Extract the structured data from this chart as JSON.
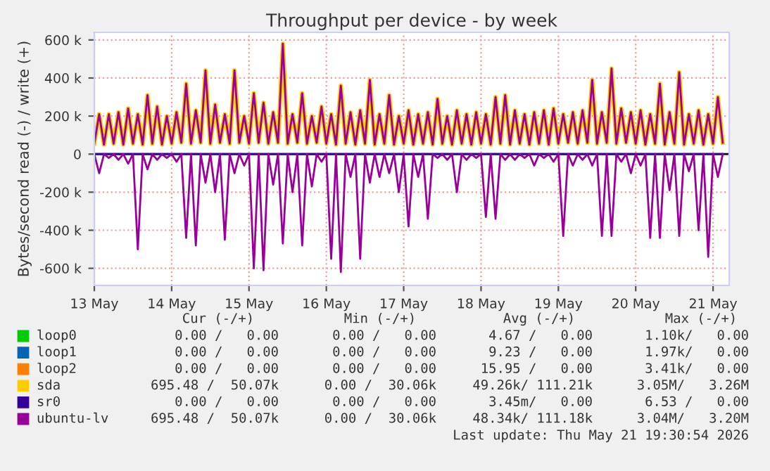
{
  "chart_data": {
    "type": "line",
    "title": "Throughput per device - by week",
    "ylabel": "Bytes/second read (-) / write (+)",
    "x": [
      "2026-05-13T00:00",
      "2026-05-13T01:30",
      "2026-05-13T03:00",
      "2026-05-13T04:30",
      "2026-05-13T06:00",
      "2026-05-13T07:30",
      "2026-05-13T09:00",
      "2026-05-13T10:30",
      "2026-05-13T12:00",
      "2026-05-13T13:30",
      "2026-05-13T15:00",
      "2026-05-13T16:30",
      "2026-05-13T18:00",
      "2026-05-13T19:30",
      "2026-05-13T21:00",
      "2026-05-13T22:30",
      "2026-05-14T00:00",
      "2026-05-14T01:30",
      "2026-05-14T03:00",
      "2026-05-14T04:30",
      "2026-05-14T06:00",
      "2026-05-14T07:30",
      "2026-05-14T09:00",
      "2026-05-14T10:30",
      "2026-05-14T12:00",
      "2026-05-14T13:30",
      "2026-05-14T15:00",
      "2026-05-14T16:30",
      "2026-05-14T18:00",
      "2026-05-14T19:30",
      "2026-05-14T21:00",
      "2026-05-14T22:30",
      "2026-05-15T00:00",
      "2026-05-15T01:30",
      "2026-05-15T03:00",
      "2026-05-15T04:30",
      "2026-05-15T06:00",
      "2026-05-15T07:30",
      "2026-05-15T09:00",
      "2026-05-15T10:30",
      "2026-05-15T12:00",
      "2026-05-15T13:30",
      "2026-05-15T15:00",
      "2026-05-15T16:30",
      "2026-05-15T18:00",
      "2026-05-15T19:30",
      "2026-05-15T21:00",
      "2026-05-15T22:30",
      "2026-05-16T00:00",
      "2026-05-16T01:30",
      "2026-05-16T03:00",
      "2026-05-16T04:30",
      "2026-05-16T06:00",
      "2026-05-16T07:30",
      "2026-05-16T09:00",
      "2026-05-16T10:30",
      "2026-05-16T12:00",
      "2026-05-16T13:30",
      "2026-05-16T15:00",
      "2026-05-16T16:30",
      "2026-05-16T18:00",
      "2026-05-16T19:30",
      "2026-05-16T21:00",
      "2026-05-16T22:30",
      "2026-05-17T00:00",
      "2026-05-17T01:30",
      "2026-05-17T03:00",
      "2026-05-17T04:30",
      "2026-05-17T06:00",
      "2026-05-17T07:30",
      "2026-05-17T09:00",
      "2026-05-17T10:30",
      "2026-05-17T12:00",
      "2026-05-17T13:30",
      "2026-05-17T15:00",
      "2026-05-17T16:30",
      "2026-05-17T18:00",
      "2026-05-17T19:30",
      "2026-05-17T21:00",
      "2026-05-17T22:30",
      "2026-05-18T00:00",
      "2026-05-18T01:30",
      "2026-05-18T03:00",
      "2026-05-18T04:30",
      "2026-05-18T06:00",
      "2026-05-18T07:30",
      "2026-05-18T09:00",
      "2026-05-18T10:30",
      "2026-05-18T12:00",
      "2026-05-18T13:30",
      "2026-05-18T15:00",
      "2026-05-18T16:30",
      "2026-05-18T18:00",
      "2026-05-18T19:30",
      "2026-05-18T21:00",
      "2026-05-18T22:30",
      "2026-05-19T00:00",
      "2026-05-19T01:30",
      "2026-05-19T03:00",
      "2026-05-19T04:30",
      "2026-05-19T06:00",
      "2026-05-19T07:30",
      "2026-05-19T09:00",
      "2026-05-19T10:30",
      "2026-05-19T12:00",
      "2026-05-19T13:30",
      "2026-05-19T15:00",
      "2026-05-19T16:30",
      "2026-05-19T18:00",
      "2026-05-19T19:30",
      "2026-05-19T21:00",
      "2026-05-19T22:30",
      "2026-05-20T00:00",
      "2026-05-20T01:30",
      "2026-05-20T03:00",
      "2026-05-20T04:30",
      "2026-05-20T06:00",
      "2026-05-20T07:30",
      "2026-05-20T09:00",
      "2026-05-20T10:30",
      "2026-05-20T12:00",
      "2026-05-20T13:30",
      "2026-05-20T15:00",
      "2026-05-20T16:30",
      "2026-05-20T18:00",
      "2026-05-20T19:30",
      "2026-05-20T21:00",
      "2026-05-20T22:30",
      "2026-05-21T00:00",
      "2026-05-21T01:30",
      "2026-05-21T03:00"
    ],
    "series": [
      {
        "name": "loop0",
        "color": "#00cc00",
        "values": [
          null,
          null,
          null,
          null,
          null,
          null,
          null,
          null,
          null,
          null,
          null,
          null,
          null,
          null,
          null,
          null,
          null,
          null,
          null,
          null,
          null,
          null,
          null,
          null,
          null,
          null,
          null,
          null,
          null,
          null,
          null,
          null,
          null,
          null,
          null,
          null,
          null,
          null,
          null,
          null,
          null,
          null,
          null,
          null,
          null,
          null,
          null,
          null,
          null,
          null,
          null,
          null,
          null,
          null,
          null,
          null,
          null,
          null,
          null,
          null,
          null,
          null,
          null,
          null,
          null,
          null,
          null,
          null,
          null,
          null,
          null,
          null,
          null,
          null,
          null,
          null,
          null,
          null,
          null,
          null,
          null,
          null,
          null,
          null,
          null,
          null,
          null,
          null,
          null,
          null,
          null,
          null,
          null,
          null,
          null,
          null,
          null,
          null,
          null,
          null,
          null,
          null,
          null,
          null,
          null,
          null,
          null,
          null,
          null,
          null,
          null,
          null,
          null,
          null,
          null,
          null,
          null,
          null,
          null,
          null,
          null,
          null,
          null,
          null,
          null,
          null,
          null,
          null,
          null,
          null,
          null
        ]
      },
      {
        "name": "loop1",
        "color": "#0066b3",
        "values": [
          null,
          null,
          null,
          null,
          null,
          null,
          null,
          null,
          null,
          null,
          null,
          null,
          null,
          null,
          null,
          null,
          null,
          null,
          null,
          null,
          null,
          null,
          null,
          null,
          null,
          null,
          null,
          null,
          null,
          null,
          null,
          null,
          null,
          null,
          null,
          null,
          null,
          null,
          null,
          null,
          null,
          null,
          null,
          null,
          null,
          null,
          null,
          null,
          null,
          null,
          null,
          null,
          null,
          null,
          null,
          null,
          null,
          null,
          null,
          null,
          null,
          null,
          null,
          null,
          null,
          null,
          null,
          null,
          null,
          null,
          null,
          null,
          null,
          null,
          null,
          null,
          null,
          null,
          null,
          null,
          null,
          null,
          null,
          null,
          null,
          null,
          null,
          null,
          null,
          null,
          null,
          null,
          null,
          null,
          null,
          null,
          null,
          null,
          null,
          null,
          null,
          null,
          null,
          null,
          null,
          null,
          null,
          null,
          null,
          null,
          null,
          null,
          null,
          null,
          null,
          null,
          null,
          null,
          null,
          null,
          null,
          null,
          null,
          null,
          null,
          null,
          null,
          null,
          null,
          null,
          null
        ]
      },
      {
        "name": "loop2",
        "color": "#ff8000",
        "values": [
          null,
          null,
          null,
          null,
          null,
          null,
          null,
          null,
          null,
          null,
          null,
          null,
          null,
          null,
          null,
          null,
          null,
          null,
          null,
          null,
          null,
          null,
          null,
          null,
          null,
          null,
          null,
          null,
          null,
          null,
          null,
          null,
          null,
          null,
          null,
          null,
          null,
          null,
          null,
          null,
          null,
          null,
          null,
          null,
          null,
          null,
          null,
          null,
          null,
          null,
          null,
          null,
          null,
          null,
          null,
          null,
          null,
          null,
          null,
          null,
          null,
          null,
          null,
          null,
          null,
          null,
          null,
          null,
          null,
          null,
          null,
          null,
          null,
          null,
          null,
          null,
          null,
          null,
          null,
          null,
          null,
          null,
          null,
          null,
          null,
          null,
          null,
          null,
          null,
          null,
          null,
          null,
          null,
          null,
          null,
          null,
          null,
          null,
          null,
          null,
          null,
          null,
          null,
          null,
          null,
          null,
          null,
          null,
          null,
          null,
          null,
          null,
          null,
          null,
          null,
          null,
          null,
          null,
          null,
          null,
          null,
          null,
          null,
          null,
          null,
          null,
          null,
          null,
          null,
          null,
          null
        ]
      },
      {
        "name": "sda",
        "color": "#ffcc00",
        "values": [
          55000,
          210000,
          50000,
          210000,
          55000,
          220000,
          50000,
          240000,
          55000,
          210000,
          50000,
          310000,
          55000,
          250000,
          50000,
          200000,
          55000,
          220000,
          60000,
          370000,
          55000,
          230000,
          60000,
          440000,
          55000,
          260000,
          60000,
          210000,
          55000,
          440000,
          60000,
          200000,
          55000,
          320000,
          60000,
          270000,
          55000,
          220000,
          60000,
          580000,
          55000,
          210000,
          60000,
          320000,
          55000,
          200000,
          60000,
          250000,
          55000,
          210000,
          50000,
          360000,
          55000,
          220000,
          50000,
          230000,
          55000,
          390000,
          50000,
          210000,
          55000,
          310000,
          50000,
          200000,
          55000,
          230000,
          50000,
          210000,
          55000,
          220000,
          50000,
          290000,
          55000,
          200000,
          50000,
          230000,
          55000,
          210000,
          50000,
          220000,
          55000,
          210000,
          50000,
          300000,
          55000,
          310000,
          50000,
          230000,
          55000,
          210000,
          50000,
          220000,
          55000,
          230000,
          50000,
          240000,
          55000,
          210000,
          60000,
          220000,
          55000,
          230000,
          60000,
          390000,
          55000,
          220000,
          60000,
          450000,
          55000,
          240000,
          60000,
          220000,
          55000,
          230000,
          50000,
          210000,
          55000,
          370000,
          50000,
          220000,
          55000,
          430000,
          50000,
          210000,
          55000,
          230000,
          50000,
          210000,
          55000,
          300000,
          60000
        ]
      },
      {
        "name": "sr0",
        "color": "#330099",
        "values": [
          0,
          0,
          0,
          0,
          0,
          0,
          0,
          0,
          0,
          0,
          0,
          0,
          0,
          0,
          0,
          0,
          0,
          0,
          0,
          0,
          0,
          0,
          0,
          0,
          0,
          0,
          0,
          0,
          0,
          0,
          0,
          0,
          0,
          0,
          0,
          0,
          0,
          0,
          0,
          0,
          0,
          0,
          0,
          0,
          0,
          0,
          0,
          0,
          0,
          0,
          0,
          0,
          0,
          0,
          0,
          0,
          0,
          0,
          0,
          0,
          0,
          0,
          0,
          0,
          0,
          0,
          0,
          0,
          0,
          0,
          0,
          0,
          0,
          0,
          0,
          0,
          0,
          0,
          0,
          0,
          0,
          0,
          0,
          0,
          0,
          0,
          0,
          0,
          0,
          0,
          0,
          0,
          0,
          0,
          0,
          0,
          0,
          0,
          0,
          0,
          0,
          0,
          0,
          0,
          0,
          0,
          0,
          0,
          0,
          0,
          0,
          0,
          0,
          0,
          0,
          0,
          0,
          0,
          0,
          0,
          0,
          0,
          0,
          0,
          0,
          0,
          0,
          0,
          0,
          0,
          0
        ]
      },
      {
        "name": "ubuntu-lv",
        "color": "#990099",
        "values": [
          55000,
          210000,
          50000,
          210000,
          55000,
          220000,
          50000,
          240000,
          55000,
          210000,
          50000,
          310000,
          55000,
          250000,
          50000,
          200000,
          55000,
          220000,
          60000,
          370000,
          55000,
          230000,
          60000,
          440000,
          55000,
          260000,
          60000,
          210000,
          55000,
          440000,
          60000,
          200000,
          55000,
          320000,
          60000,
          270000,
          55000,
          220000,
          60000,
          580000,
          55000,
          210000,
          60000,
          320000,
          55000,
          200000,
          60000,
          250000,
          55000,
          210000,
          50000,
          360000,
          55000,
          220000,
          50000,
          230000,
          55000,
          390000,
          50000,
          210000,
          55000,
          310000,
          50000,
          200000,
          55000,
          230000,
          50000,
          210000,
          55000,
          220000,
          50000,
          290000,
          55000,
          200000,
          50000,
          230000,
          55000,
          210000,
          50000,
          220000,
          55000,
          210000,
          50000,
          300000,
          55000,
          310000,
          50000,
          230000,
          55000,
          210000,
          50000,
          220000,
          55000,
          230000,
          50000,
          240000,
          55000,
          210000,
          60000,
          220000,
          55000,
          230000,
          60000,
          390000,
          55000,
          220000,
          60000,
          450000,
          55000,
          240000,
          60000,
          220000,
          55000,
          230000,
          50000,
          210000,
          55000,
          370000,
          50000,
          220000,
          55000,
          430000,
          50000,
          210000,
          55000,
          230000,
          50000,
          210000,
          55000,
          300000,
          60000
        ]
      },
      {
        "color": "#990099",
        "values": [
          0,
          -100000,
          0,
          -20000,
          0,
          -30000,
          0,
          -50000,
          0,
          -500000,
          0,
          -80000,
          0,
          -30000,
          0,
          -20000,
          0,
          -40000,
          0,
          -440000,
          0,
          -480000,
          0,
          -150000,
          0,
          -200000,
          0,
          -450000,
          0,
          -100000,
          0,
          -60000,
          0,
          -600000,
          0,
          -610000,
          0,
          -160000,
          0,
          -470000,
          0,
          -200000,
          0,
          -480000,
          0,
          -170000,
          0,
          -40000,
          0,
          -550000,
          0,
          -620000,
          0,
          -120000,
          0,
          -550000,
          0,
          -150000,
          0,
          -120000,
          0,
          -100000,
          0,
          -200000,
          0,
          -380000,
          0,
          -120000,
          0,
          -340000,
          0,
          -20000,
          0,
          -30000,
          0,
          -200000,
          0,
          -30000,
          0,
          -20000,
          0,
          -330000,
          0,
          -340000,
          0,
          -30000,
          0,
          -30000,
          0,
          -20000,
          0,
          -60000,
          0,
          -20000,
          0,
          -40000,
          0,
          -430000,
          0,
          -60000,
          0,
          -30000,
          0,
          -60000,
          0,
          -430000,
          0,
          -430000,
          0,
          -40000,
          0,
          -100000,
          0,
          -60000,
          0,
          -440000,
          0,
          -440000,
          0,
          -190000,
          0,
          -430000,
          0,
          -90000,
          0,
          -400000,
          0,
          -540000,
          0,
          -120000,
          0
        ]
      }
    ],
    "ylim": [
      -690000,
      640000
    ],
    "yticks": [
      {
        "value": -600000,
        "label": "-600 k"
      },
      {
        "value": -400000,
        "label": "-400 k"
      },
      {
        "value": -200000,
        "label": "-200 k"
      },
      0,
      {
        "value": 200000,
        "label": "200 k"
      },
      {
        "value": 400000,
        "label": "400 k"
      },
      {
        "value": 600000,
        "label": "600 k"
      }
    ],
    "xlim": [
      "2026-05-13T00:00",
      "2026-05-21T05:00"
    ],
    "xticks": [
      {
        "value": "2026-05-13",
        "label": "13 May"
      },
      {
        "value": "2026-05-14",
        "label": "14 May"
      },
      {
        "value": "2026-05-15",
        "label": "15 May"
      },
      {
        "value": "2026-05-16",
        "label": "16 May"
      },
      {
        "value": "2026-05-17",
        "label": "17 May"
      },
      {
        "value": "2026-05-18",
        "label": "18 May"
      },
      {
        "value": "2026-05-19",
        "label": "19 May"
      },
      {
        "value": "2026-05-20",
        "label": "20 May"
      },
      {
        "value": "2026-05-21",
        "label": "21 May"
      }
    ],
    "ref_lines": [
      {
        "axis": "y",
        "value": 0,
        "color": "#000000"
      }
    ],
    "grid": true,
    "legend": "bottom",
    "line_style": "solid",
    "annotations": [
      "Cur (-/+)",
      "Min (-/+)",
      "Avg (-/+)",
      "Max (-/+)",
      "0.00 /   0.00",
      "0.00 /   0.00",
      "4.67 /   0.00",
      "1.10k/   0.00",
      "0.00 /   0.00",
      "0.00 /   0.00",
      "9.23 /   0.00",
      "1.97k/   0.00",
      "0.00 /   0.00",
      "0.00 /   0.00",
      "15.95 /   0.00",
      "3.41k/   0.00",
      "695.48 /  50.07k",
      "0.00 /  30.06k",
      "49.26k/ 111.21k",
      "3.05M/   3.26M",
      "0.00 /   0.00",
      "0.00 /   0.00",
      "3.45m/   0.00",
      "6.53 /   0.00",
      "695.48 /  50.07k",
      "0.00 /  30.06k",
      "48.34k/ 111.18k",
      "3.04M/   3.20M",
      "Last update: Thu May 21 19:30:54 2026"
    ]
  }
}
